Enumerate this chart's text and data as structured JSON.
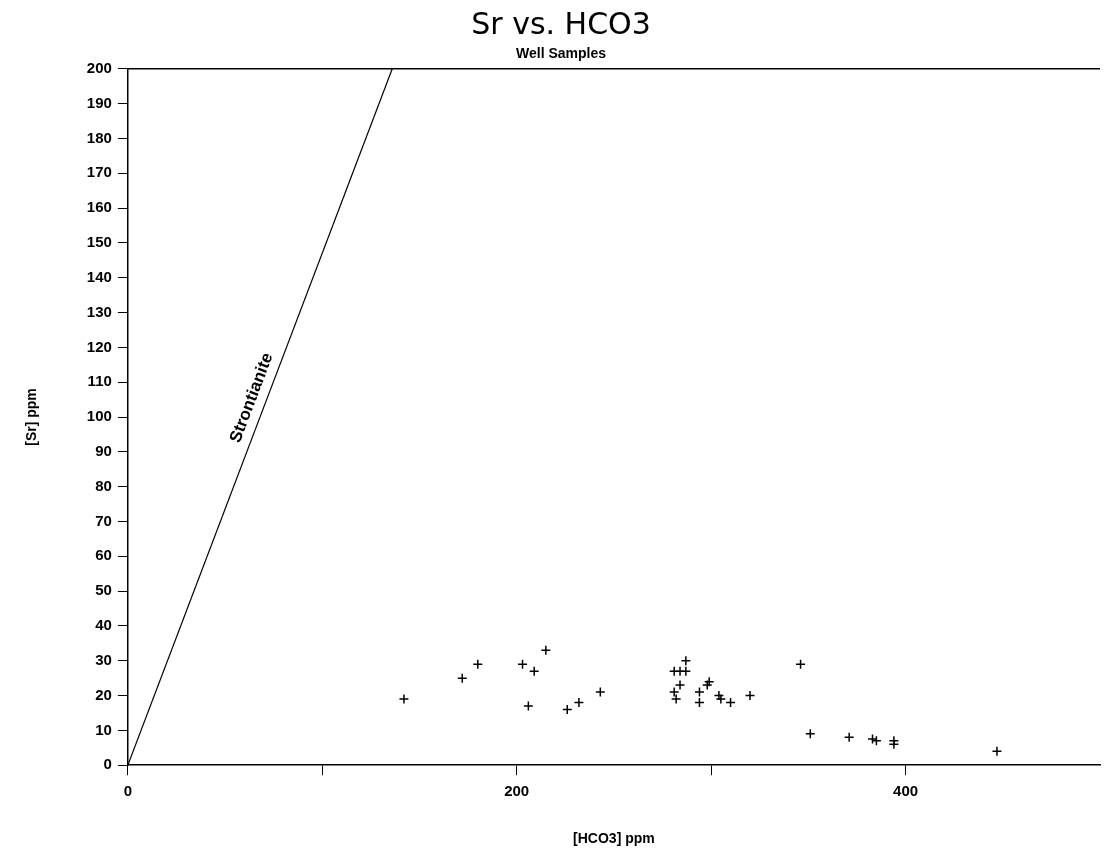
{
  "chart_data": {
    "type": "scatter",
    "title": "Sr vs. HCO3",
    "subtitle": "Well Samples",
    "xlabel": "[HCO3] ppm",
    "ylabel": "[Sr] ppm",
    "xlim": [
      0,
      500
    ],
    "xticks": [
      0,
      {
        "value": 100,
        "label": null
      },
      200,
      {
        "value": 300,
        "label": null
      },
      400
    ],
    "ylim": [
      0,
      200
    ],
    "yticks": [
      0,
      10,
      20,
      30,
      40,
      50,
      60,
      70,
      80,
      90,
      100,
      110,
      120,
      130,
      140,
      150,
      160,
      170,
      180,
      190,
      200
    ],
    "grid": false,
    "legend": false,
    "marker": "cross",
    "series": [
      {
        "color": "#000000",
        "x": [
          142,
          172,
          180,
          203,
          209,
          215,
          206,
          226,
          232,
          243,
          281,
          287,
          287,
          284,
          284,
          281,
          282,
          294,
          294,
          298,
          299,
          304,
          305,
          310,
          320,
          346,
          351,
          371,
          383,
          385,
          394,
          394,
          447
        ],
        "values": [
          19,
          25,
          29,
          29,
          27,
          33,
          17,
          16,
          18,
          21,
          27,
          30,
          27,
          27,
          23,
          21,
          19,
          18,
          21,
          23,
          24,
          20,
          19,
          18,
          20,
          29,
          9,
          8,
          7.5,
          7,
          7,
          6,
          4
        ]
      },
      {
        "type": "line",
        "name": "Strontianite",
        "color": "#000000",
        "marker": "none",
        "line_style": "solid",
        "x": [
          0,
          136
        ],
        "values": [
          0,
          200
        ]
      }
    ]
  }
}
